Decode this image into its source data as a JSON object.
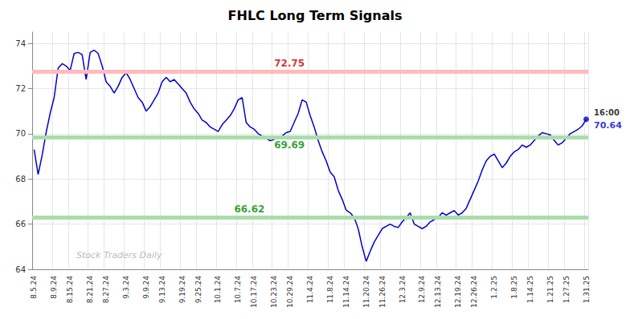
{
  "chart_data": {
    "type": "line",
    "title": "FHLC Long Term Signals",
    "categories": [
      "8.5.24",
      null,
      null,
      null,
      null,
      "8.9.24",
      null,
      null,
      null,
      "8.15.24",
      null,
      null,
      null,
      null,
      "8.21.24",
      null,
      null,
      null,
      "8.27.24",
      null,
      null,
      null,
      null,
      "9.3.24",
      null,
      null,
      null,
      null,
      "9.9.24",
      null,
      null,
      null,
      "9.13.24",
      null,
      null,
      null,
      null,
      "9.19.24",
      null,
      null,
      null,
      "9.25.24",
      null,
      null,
      null,
      null,
      "10.1.24",
      null,
      null,
      null,
      null,
      "10.7.24",
      null,
      null,
      null,
      "10.17.24",
      null,
      null,
      null,
      null,
      "10.23.24",
      null,
      null,
      null,
      "10.29.24",
      null,
      null,
      null,
      null,
      "11.4.24",
      null,
      null,
      null,
      null,
      "11.8.24",
      null,
      null,
      null,
      "11.14.24",
      null,
      null,
      null,
      null,
      "11.20.24",
      null,
      null,
      null,
      "11.26.24",
      null,
      null,
      null,
      null,
      "12.3.24",
      null,
      null,
      null,
      null,
      "12.9.24",
      null,
      null,
      null,
      "12.13.24",
      null,
      null,
      null,
      null,
      "12.19.24",
      null,
      null,
      null,
      "12.26.24",
      null,
      null,
      null,
      null,
      "1.2.25",
      null,
      null,
      null,
      null,
      "1.8.25",
      null,
      null,
      null,
      "1.14.25",
      null,
      null,
      null,
      null,
      "1.21.25",
      null,
      null,
      null,
      "1.27.25",
      null,
      null,
      null,
      null,
      "1.31.25"
    ],
    "values": [
      69.3,
      68.2,
      69.05,
      70.05,
      70.9,
      71.6,
      72.9,
      73.1,
      73.0,
      72.8,
      73.55,
      73.6,
      73.5,
      72.4,
      73.6,
      73.7,
      73.55,
      73.0,
      72.3,
      72.1,
      71.8,
      72.1,
      72.5,
      72.7,
      72.4,
      72.0,
      71.6,
      71.4,
      71.0,
      71.2,
      71.5,
      71.8,
      72.3,
      72.5,
      72.3,
      72.4,
      72.2,
      72.0,
      71.8,
      71.4,
      71.1,
      70.9,
      70.6,
      70.5,
      70.3,
      70.2,
      70.1,
      70.4,
      70.6,
      70.8,
      71.1,
      71.5,
      71.6,
      70.5,
      70.3,
      70.2,
      70.0,
      69.9,
      69.8,
      69.69,
      69.75,
      69.85,
      69.9,
      70.05,
      70.1,
      70.5,
      70.9,
      71.5,
      71.4,
      70.8,
      70.3,
      69.7,
      69.2,
      68.8,
      68.3,
      68.1,
      67.5,
      67.1,
      66.62,
      66.5,
      66.3,
      65.8,
      65.0,
      64.35,
      64.8,
      65.2,
      65.5,
      65.8,
      65.9,
      66.0,
      65.9,
      65.85,
      66.1,
      66.3,
      66.5,
      66.0,
      65.9,
      65.8,
      65.9,
      66.1,
      66.2,
      66.3,
      66.5,
      66.4,
      66.5,
      66.6,
      66.4,
      66.5,
      66.7,
      67.1,
      67.5,
      67.9,
      68.4,
      68.8,
      69.0,
      69.1,
      68.8,
      68.5,
      68.7,
      69.0,
      69.2,
      69.3,
      69.5,
      69.4,
      69.5,
      69.7,
      69.9,
      70.05,
      70.0,
      69.95,
      69.7,
      69.5,
      69.6,
      69.8,
      70.0,
      70.1,
      70.2,
      70.35,
      70.64
    ],
    "color": "#0000cc",
    "ylim": [
      64,
      74.5
    ],
    "yticks": [
      64,
      66,
      68,
      70,
      72,
      74
    ],
    "grid": true,
    "hlines": [
      {
        "value": 72.75,
        "color": "#ffbbbb"
      },
      {
        "value": 69.84,
        "color": "#aaddaa"
      },
      {
        "value": 66.3,
        "color": "#aaddaa"
      }
    ],
    "annotations": [
      {
        "text": "72.75",
        "color": "#cc0000"
      },
      {
        "text": "69.69",
        "color": "#008800"
      },
      {
        "text": "66.62",
        "color": "#008800"
      }
    ],
    "last_time": "16:00",
    "last_price": "70.64",
    "last_dot_color": "#0000cc",
    "watermark": "Stock Traders Daily"
  }
}
